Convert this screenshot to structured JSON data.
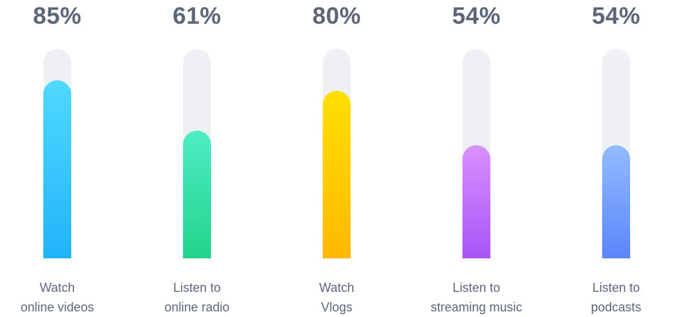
{
  "chart_data": {
    "type": "bar",
    "categories": [
      [
        "Watch",
        "online videos"
      ],
      [
        "Listen to",
        "online radio"
      ],
      [
        "Watch",
        "Vlogs"
      ],
      [
        "Listen to",
        "streaming music"
      ],
      [
        "Listen to",
        "podcasts"
      ]
    ],
    "values": [
      85,
      61,
      80,
      54,
      54
    ],
    "value_labels": [
      "85%",
      "61%",
      "80%",
      "54%",
      "54%"
    ],
    "ylim": [
      0,
      100
    ],
    "grid": false,
    "legend": "none",
    "colors": [
      [
        "#4fd9ff",
        "#22b4fb"
      ],
      [
        "#4eedc4",
        "#22d38a"
      ],
      [
        "#ffe000",
        "#ffb800"
      ],
      [
        "#d991ff",
        "#a855f7"
      ],
      [
        "#93bbff",
        "#5b86fa"
      ]
    ],
    "track_color": "#eef0f3",
    "text_color": "#5c6677"
  }
}
